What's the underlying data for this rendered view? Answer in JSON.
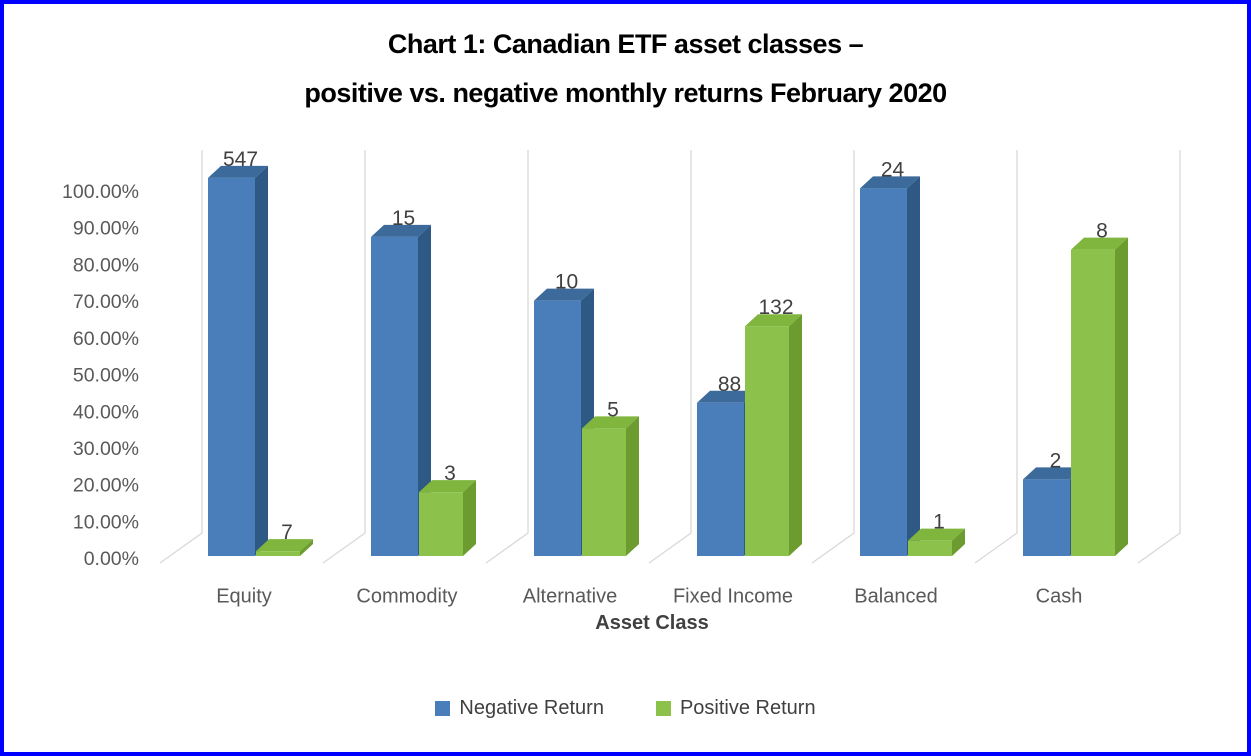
{
  "frame": {
    "border_color": "#0000FF",
    "background": "#FFFFFF"
  },
  "title": {
    "line1": "Chart 1: Canadian ETF asset classes –",
    "line2": "positive vs. negative monthly returns February 2020",
    "color": "#000000"
  },
  "chart_data": {
    "type": "bar",
    "style": "3d-clustered-column",
    "title": "Chart 1: Canadian ETF asset classes – positive vs. negative monthly returns February 2020",
    "categories": [
      "Equity",
      "Commodity",
      "Alternative",
      "Fixed Income",
      "Balanced",
      "Cash"
    ],
    "series": [
      {
        "name": "Negative Return",
        "counts": [
          547,
          15,
          10,
          88,
          24,
          2
        ],
        "percent_of_category": [
          98.74,
          83.33,
          66.67,
          40.0,
          96.0,
          20.0
        ],
        "colors": {
          "front": "#4A7EBB",
          "top": "#3B6A9B",
          "side": "#2E5984"
        }
      },
      {
        "name": "Positive Return",
        "counts": [
          7,
          3,
          5,
          132,
          1,
          8
        ],
        "percent_of_category": [
          1.26,
          16.67,
          33.33,
          60.0,
          4.0,
          80.0
        ],
        "colors": {
          "front": "#8CC24B",
          "top": "#80B53E",
          "side": "#6C9C30"
        }
      }
    ],
    "bar_labels": "counts",
    "xlabel": "Asset Class",
    "ylabel": "",
    "yticks": [
      "0.00%",
      "10.00%",
      "20.00%",
      "30.00%",
      "40.00%",
      "50.00%",
      "60.00%",
      "70.00%",
      "80.00%",
      "90.00%",
      "100.00%"
    ],
    "ylim": [
      0,
      100
    ],
    "grid": false,
    "legend_position": "bottom"
  },
  "axis_style": {
    "tick_label_color": "#595959",
    "category_label_color": "#595959",
    "axis_title_color": "#404040",
    "data_label_color": "#404040",
    "separator_line_color": "#D9D9D9",
    "legend_text_color": "#404040"
  }
}
